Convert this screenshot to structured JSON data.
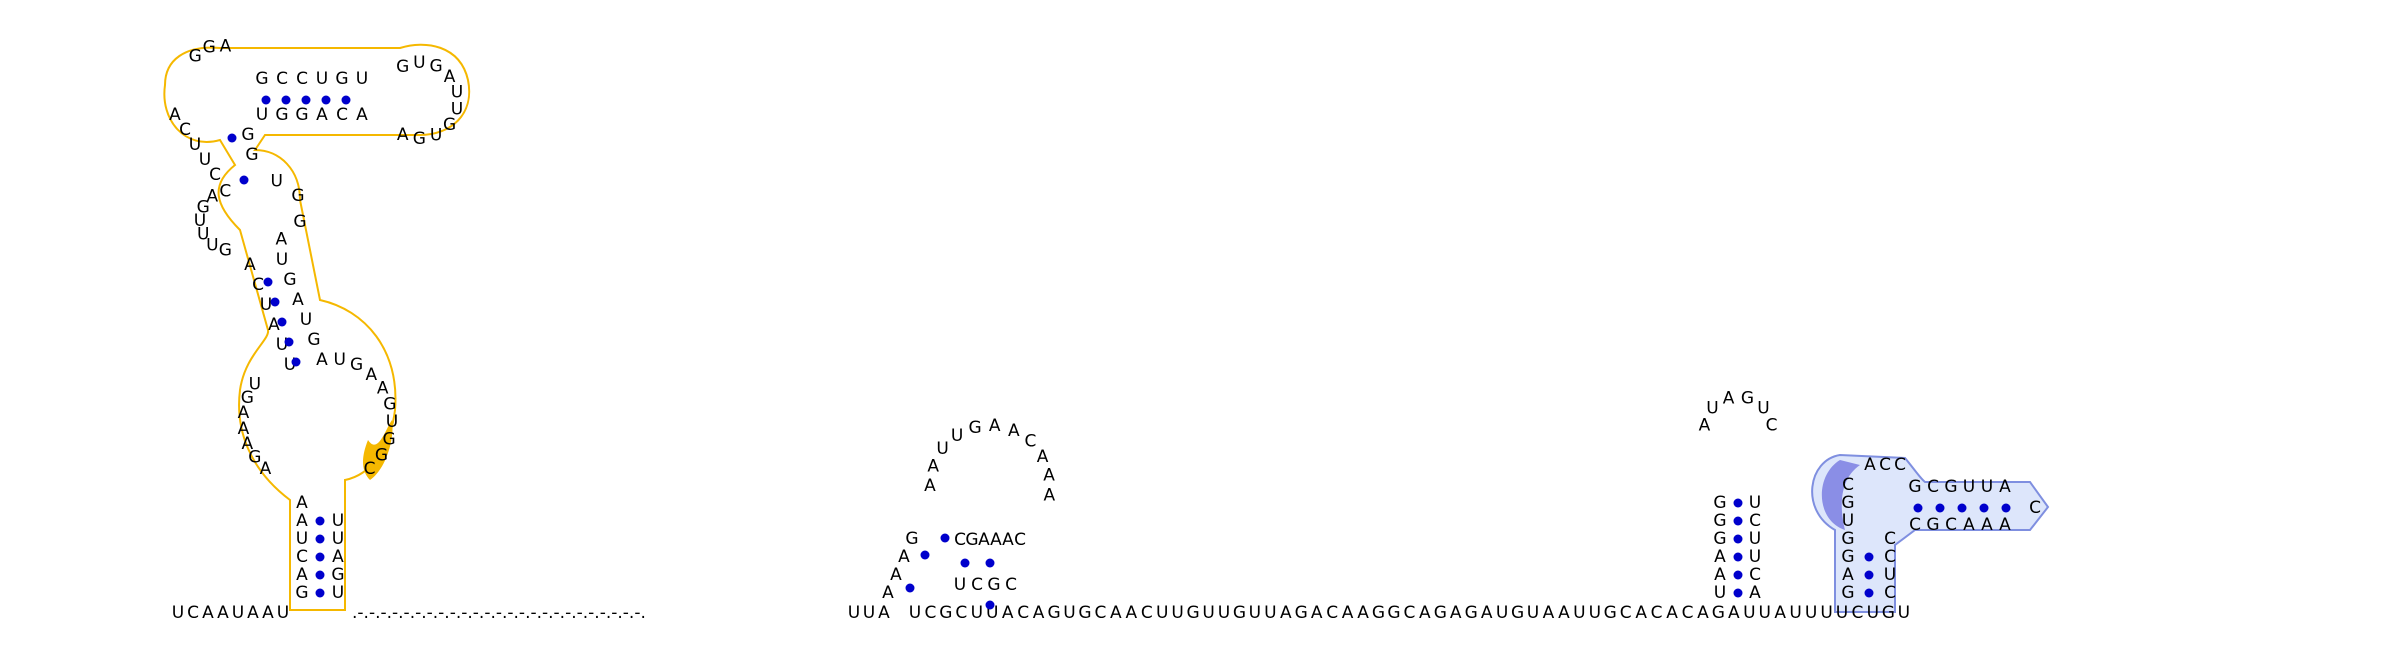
{
  "colors": {
    "highlight_orange": "#f5b800",
    "highlight_orange_fill": "#fff7e0",
    "highlight_blue_outline": "#7f8fe0",
    "highlight_blue_fill": "#dde6fb",
    "highlight_blue_strong": "#8a8ee6",
    "basepair_dot": "#0000cc",
    "nucleotide_text": "#000000"
  },
  "backbone": {
    "left_segment": "UCAAUAAU",
    "gap_dots": ".-.-.-.-.-.-.-.-.-.-.-.-.-.-.-.-.-.-.-.-.-.-.-.-.-.",
    "middle_prefix": "UUA",
    "middle_main": "UCGCUUACAGUGCAACUUGUUGUUAGACAAGGCAGAGAUGUAAUUGCACACAGAUUAUUUUCUGU"
  },
  "hairpin_far_left": {
    "stem_left": "GACUAA",
    "stem_right": "UGAUU",
    "loop_left": "AGAAAGU",
    "loop_right": "UGAAGUGGC",
    "upper_left": "UUAUCA",
    "upper_right": "AGUAGU",
    "top_left_loop": "GUUUGAC",
    "top_right_loop": "UGGA",
    "stem_top_left": "GGA",
    "stem_top_right": "GCCUGU",
    "stem_top_right2": "UGGACA",
    "top_hairpin": "GUGAUUGUGA",
    "extra_left": "ACUUC",
    "extra_mid": "GG"
  },
  "pseudoknot_middle": {
    "left_stem": "AAAG",
    "loop": "AAUUGAACAAA",
    "right_pairs": "UCGC",
    "inner": "CGAAAC"
  },
  "hairpin_right1": {
    "left": "UAAGGG",
    "loop": "AUAGUC",
    "right": "ACUUCU"
  },
  "hairpin_right2": {
    "left": "GAGGUGC",
    "loop_top": "ACC",
    "stem_top": "GCGUUA",
    "turn": "C",
    "stem_bottom": "CGCAAA",
    "right": "CUCC"
  }
}
